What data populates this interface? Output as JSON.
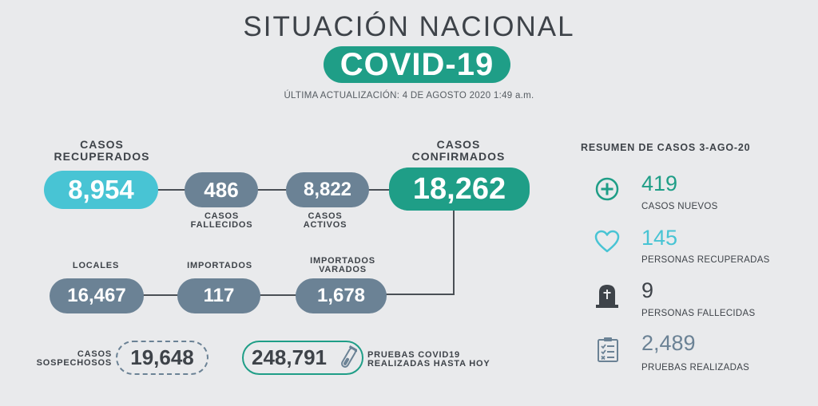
{
  "header": {
    "title": "SITUACIÓN NACIONAL",
    "badge": "COVID-19",
    "updated": "ÚLTIMA ACTUALIZACIÓN: 4 DE AGOSTO 2020 1:49 a.m."
  },
  "flow": {
    "recuperados": {
      "label_1": "CASOS",
      "label_2": "RECUPERADOS",
      "value": "8,954"
    },
    "fallecidos": {
      "value": "486",
      "label_1": "CASOS",
      "label_2": "FALLECIDOS"
    },
    "activos": {
      "value": "8,822",
      "label_1": "CASOS",
      "label_2": "ACTIVOS"
    },
    "confirmados": {
      "label_1": "CASOS",
      "label_2": "CONFIRMADOS",
      "value": "18,262"
    },
    "locales": {
      "label": "LOCALES",
      "value": "16,467"
    },
    "importados": {
      "label": "IMPORTADOS",
      "value": "117"
    },
    "varados": {
      "label_1": "IMPORTADOS",
      "label_2": "VARADOS",
      "value": "1,678"
    }
  },
  "sospechosos": {
    "label_1": "CASOS",
    "label_2": "SOSPECHOSOS",
    "value": "19,648"
  },
  "pruebas": {
    "value": "248,791",
    "label_1": "PRUEBAS COVID19",
    "label_2": "REALIZADAS HASTA HOY"
  },
  "resumen": {
    "title": "RESUMEN DE CASOS 3-AGO-20",
    "items": [
      {
        "icon": "plus-circle-icon",
        "value": "419",
        "label": "CASOS NUEVOS",
        "color": "#1f9e87"
      },
      {
        "icon": "heart-icon",
        "value": "145",
        "label": "PERSONAS RECUPERADAS",
        "color": "#48c4d4"
      },
      {
        "icon": "tombstone-icon",
        "value": "9",
        "label": "PERSONAS FALLECIDAS",
        "color": "#3e4349"
      },
      {
        "icon": "clipboard-checklist-icon",
        "value": "2,489",
        "label": "PRUEBAS REALIZADAS",
        "color": "#6b8295"
      }
    ]
  },
  "colors": {
    "background": "#e9eaec",
    "teal": "#1f9e87",
    "cyan": "#48c4d4",
    "slate": "#6b8295",
    "dark": "#3e4349"
  }
}
